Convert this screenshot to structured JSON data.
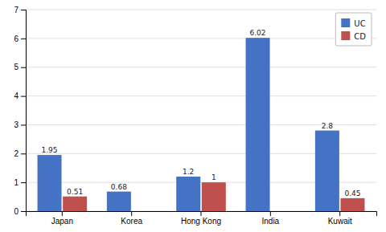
{
  "chart_data": {
    "type": "bar",
    "categories": [
      "Japan",
      "Korea",
      "Hong Kong",
      "India",
      "Kuwait"
    ],
    "series": [
      {
        "name": "UC",
        "color": "#4472C4",
        "values": [
          1.95,
          0.68,
          1.2,
          6.02,
          2.8
        ]
      },
      {
        "name": "CD",
        "color": "#C0504D",
        "values": [
          0.51,
          null,
          1.0,
          null,
          0.45
        ]
      }
    ],
    "ylim": [
      0,
      7
    ],
    "yticks": [
      0,
      1,
      2,
      3,
      4,
      5,
      6,
      7
    ],
    "grid": true,
    "legend": "upper right",
    "data_labels": true
  }
}
